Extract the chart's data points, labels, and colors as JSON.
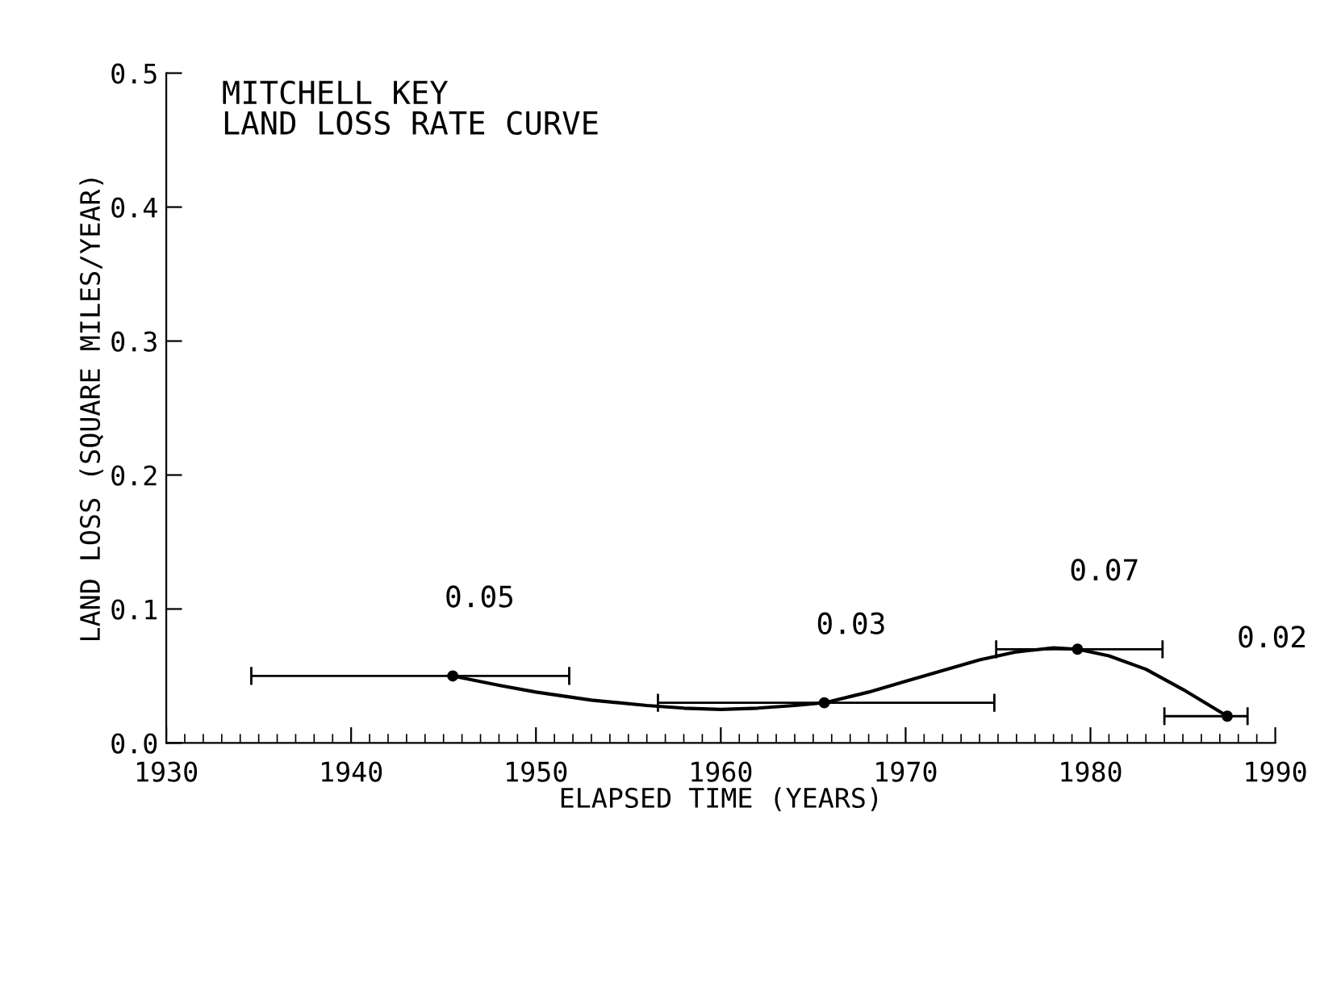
{
  "chart_data": {
    "type": "scatter",
    "title": "MITCHELL KEY\nLAND LOSS RATE CURVE",
    "xlabel": "ELAPSED TIME (YEARS)",
    "ylabel": "LAND LOSS (SQUARE MILES/YEAR)",
    "series": [
      {
        "type": "line",
        "color": "#000000",
        "x": [
          1945.5,
          1948,
          1950,
          1953,
          1956,
          1958,
          1960,
          1962,
          1964,
          1965.6,
          1968,
          1970,
          1972,
          1974,
          1976,
          1978,
          1979.3,
          1981,
          1983,
          1985,
          1987.4
        ],
        "values": [
          0.05,
          0.043,
          0.038,
          0.032,
          0.028,
          0.026,
          0.025,
          0.026,
          0.028,
          0.03,
          0.038,
          0.046,
          0.054,
          0.062,
          0.068,
          0.071,
          0.07,
          0.065,
          0.055,
          0.04,
          0.02
        ]
      },
      {
        "color": "#000000",
        "marker": "circle",
        "x": [
          1945.5,
          1965.6,
          1979.3,
          1987.4
        ],
        "values": [
          0.05,
          0.03,
          0.07,
          0.02
        ],
        "xerrors": [
          [
            1934.6,
            1951.8
          ],
          [
            1956.6,
            1974.8
          ],
          [
            1974.9,
            1983.9
          ],
          [
            1984.0,
            1988.5
          ]
        ],
        "value_labels": [
          "0.05",
          "0.03",
          "0.07",
          "0.02"
        ]
      }
    ],
    "line_style": "solid",
    "xlim": [
      1930,
      1990
    ],
    "xticks": [
      1930,
      1940,
      1950,
      1960,
      1970,
      1980,
      1990
    ],
    "ylim": [
      0.0,
      0.5
    ],
    "yticks": [
      {
        "value": 0,
        "label": "0.0"
      },
      0.1,
      0.2,
      0.3,
      0.4,
      0.5
    ],
    "grid": false
  }
}
